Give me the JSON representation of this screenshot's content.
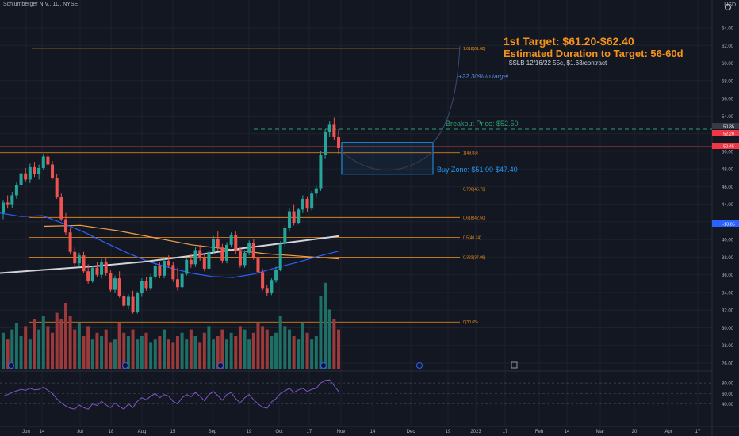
{
  "header": {
    "symbol_info": "Schlumberger N.V., 1D, NYSE",
    "currency": "USD"
  },
  "annotations": {
    "target_title": "1st Target: $61.20-$62.40",
    "duration": "Estimated Duration to Target: 56-60d",
    "option": "$SLB 12/16/22 55c, $1.63/contract",
    "pct_to_target": "+22.30% to target",
    "breakout": "Breakout Price: $52.50",
    "buy_zone": "Buy Zone: $51.00-$47.40"
  },
  "fib_levels": [
    {
      "label": "1.618(61.68)",
      "value": 61.68
    },
    {
      "label": "1(49.83)",
      "value": 49.83
    },
    {
      "label": "0.786(45.73)",
      "value": 45.73
    },
    {
      "label": "0.618(42.50)",
      "value": 42.5
    },
    {
      "label": "0.5(40.24)",
      "value": 40.24
    },
    {
      "label": "0.382(37.98)",
      "value": 37.98
    },
    {
      "label": "0(30.65)",
      "value": 30.65
    }
  ],
  "price_badges": [
    {
      "text": "50.35",
      "color": "#363a45"
    },
    {
      "text": "52.20",
      "color": "#f23645"
    },
    {
      "text": "50.45",
      "color": "#f23645"
    },
    {
      "text": "-13.85",
      "color": "#2962ff"
    }
  ],
  "price_axis": {
    "ticks": [
      "64.00",
      "62.00",
      "60.00",
      "58.00",
      "56.00",
      "54.00",
      "52.00",
      "50.00",
      "48.00",
      "46.00",
      "44.00",
      "42.00",
      "40.00",
      "38.00",
      "36.00",
      "34.00",
      "32.00",
      "30.00",
      "28.00",
      "26.00"
    ]
  },
  "rsi_axis": {
    "ticks": [
      "80.00",
      "60.00",
      "40.00"
    ]
  },
  "time_axis": {
    "labels": [
      "Jun",
      "14",
      "Jul",
      "18",
      "Aug",
      "15",
      "Sep",
      "19",
      "Oct",
      "17",
      "Nov",
      "14",
      "Dec",
      "19",
      "2023",
      "17",
      "Feb",
      "14",
      "Mar",
      "20",
      "Apr",
      "17"
    ]
  },
  "colors": {
    "up": "#26a69a",
    "down": "#ef5350",
    "fib": "#f7931a",
    "bg": "#131722",
    "grid": "#1e222d",
    "ma_white": "#d1d4dc",
    "ma_orange": "#f0a04b",
    "ma_blue": "#2962ff",
    "rsi": "#7e57c2",
    "box": "#2196f3"
  },
  "chart_data": {
    "type": "candlestick",
    "title": "Schlumberger N.V., 1D, NYSE",
    "ylim": [
      25,
      66
    ],
    "candles": [
      [
        43,
        44.5,
        42.3,
        44.2
      ],
      [
        44.2,
        45,
        43.5,
        44
      ],
      [
        44,
        45.4,
        43.6,
        45
      ],
      [
        45,
        46.5,
        44.6,
        46.2
      ],
      [
        46.2,
        47.8,
        45.9,
        47.5
      ],
      [
        47.5,
        48.1,
        46.5,
        46.8
      ],
      [
        46.8,
        48.6,
        46.4,
        48.2
      ],
      [
        48.2,
        48.8,
        47.1,
        47.4
      ],
      [
        47.4,
        48.5,
        46.8,
        48.1
      ],
      [
        48.1,
        49.7,
        47.9,
        49.4
      ],
      [
        49.4,
        49.8,
        48.2,
        48.5
      ],
      [
        48.5,
        48.9,
        46.8,
        47
      ],
      [
        47,
        47.4,
        44.6,
        44.8
      ],
      [
        44.8,
        45.2,
        42.1,
        42.3
      ],
      [
        42.3,
        43,
        40.5,
        40.8
      ],
      [
        40.8,
        41.3,
        38.4,
        38.6
      ],
      [
        38.6,
        39.1,
        37,
        37.3
      ],
      [
        37.3,
        38.5,
        36.9,
        38.2
      ],
      [
        38.2,
        38.6,
        36.2,
        36.4
      ],
      [
        36.4,
        37.2,
        35,
        35.3
      ],
      [
        35.3,
        37,
        35.1,
        36.8
      ],
      [
        36.8,
        37.5,
        35.8,
        36
      ],
      [
        36,
        37.8,
        35.6,
        37.5
      ],
      [
        37.5,
        37.9,
        35.9,
        36.2
      ],
      [
        36.2,
        36.6,
        34.1,
        34.3
      ],
      [
        34.3,
        35.9,
        34,
        35.6
      ],
      [
        35.6,
        36.4,
        33.4,
        33.6
      ],
      [
        33.6,
        34,
        32.3,
        32.5
      ],
      [
        32.5,
        33.8,
        32.1,
        33.5
      ],
      [
        33.5,
        34.2,
        31.6,
        31.8
      ],
      [
        31.8,
        34.1,
        31.6,
        33.9
      ],
      [
        33.9,
        35.6,
        33.5,
        35.3
      ],
      [
        35.3,
        35.7,
        34.2,
        34.5
      ],
      [
        34.5,
        36.1,
        34.2,
        35.8
      ],
      [
        35.8,
        37.3,
        35.5,
        37
      ],
      [
        37,
        37.5,
        35.6,
        35.9
      ],
      [
        35.9,
        37.9,
        35.6,
        37.6
      ],
      [
        37.6,
        38.2,
        36.8,
        37.1
      ],
      [
        37.1,
        37.5,
        35.2,
        35.5
      ],
      [
        35.5,
        36.8,
        34.2,
        34.6
      ],
      [
        34.6,
        36.4,
        34.3,
        36.1
      ],
      [
        36.1,
        38,
        35.9,
        37.7
      ],
      [
        37.7,
        38.4,
        36.8,
        37.2
      ],
      [
        37.2,
        39.1,
        36.9,
        38.8
      ],
      [
        38.8,
        39.4,
        37.6,
        37.9
      ],
      [
        37.9,
        38.3,
        36.4,
        36.7
      ],
      [
        36.7,
        38.9,
        36.5,
        38.6
      ],
      [
        38.6,
        40.4,
        38.3,
        40.1
      ],
      [
        40.1,
        40.9,
        38.7,
        39.1
      ],
      [
        39.1,
        39.5,
        37.3,
        37.6
      ],
      [
        37.6,
        39.7,
        37.3,
        39.4
      ],
      [
        39.4,
        40.8,
        39.1,
        40.5
      ],
      [
        40.5,
        40.9,
        38.4,
        38.7
      ],
      [
        38.7,
        39.1,
        36.8,
        37.1
      ],
      [
        37.1,
        38.8,
        36.8,
        38.5
      ],
      [
        38.5,
        39.9,
        38.2,
        39.6
      ],
      [
        39.6,
        40.1,
        37.7,
        38
      ],
      [
        38,
        38.4,
        36,
        36.3
      ],
      [
        36.3,
        36.7,
        34.2,
        34.5
      ],
      [
        34.5,
        34.9,
        33.6,
        33.9
      ],
      [
        33.9,
        35.6,
        33.7,
        35.4
      ],
      [
        35.4,
        36.9,
        35.1,
        36.6
      ],
      [
        36.6,
        39.8,
        36.4,
        39.5
      ],
      [
        39.5,
        41.6,
        39.2,
        41.3
      ],
      [
        41.3,
        43.5,
        40.9,
        43.2
      ],
      [
        43.2,
        44,
        41.6,
        41.9
      ],
      [
        41.9,
        43.6,
        41.7,
        43.4
      ],
      [
        43.4,
        45,
        43,
        44.6
      ],
      [
        44.6,
        44.9,
        43.1,
        43.5
      ],
      [
        43.5,
        45.5,
        43.3,
        45.2
      ],
      [
        45.2,
        46.1,
        44.7,
        45.8
      ],
      [
        45.8,
        50,
        45.5,
        49.6
      ],
      [
        49.6,
        52.5,
        49.2,
        52.2
      ],
      [
        52.2,
        53.4,
        51.6,
        53
      ],
      [
        53,
        53.8,
        51.3,
        51.6
      ],
      [
        51.6,
        52.5,
        49.7,
        50.35
      ]
    ],
    "volume": [
      11,
      9,
      12,
      14,
      10,
      13,
      9,
      15,
      12,
      16,
      13,
      11,
      17,
      15,
      20,
      16,
      12,
      14,
      10,
      13,
      9,
      11,
      10,
      12,
      8,
      9,
      14,
      11,
      10,
      12,
      9,
      10,
      11,
      8,
      9,
      10,
      12,
      9,
      8,
      10,
      11,
      9,
      12,
      10,
      8,
      11,
      13,
      9,
      10,
      12,
      9,
      11,
      10,
      13,
      12,
      9,
      11,
      14,
      13,
      12,
      10,
      11,
      16,
      13,
      12,
      10,
      9,
      14,
      11,
      9,
      10,
      22,
      26,
      18,
      15,
      12
    ],
    "rsi": [
      55,
      58,
      62,
      65,
      68,
      66,
      70,
      67,
      68,
      72,
      66,
      60,
      50,
      42,
      36,
      32,
      30,
      38,
      33,
      30,
      40,
      37,
      45,
      38,
      33,
      42,
      35,
      30,
      40,
      33,
      45,
      52,
      48,
      55,
      60,
      52,
      58,
      55,
      45,
      40,
      52,
      58,
      54,
      62,
      55,
      46,
      58,
      64,
      56,
      47,
      58,
      62,
      50,
      42,
      52,
      58,
      48,
      40,
      34,
      32,
      44,
      50,
      60,
      65,
      70,
      62,
      67,
      70,
      64,
      68,
      70,
      80,
      85,
      86,
      75,
      64
    ],
    "ma_white": [
      36.2,
      36.6,
      37,
      37.5,
      38.2,
      39,
      39.7,
      40.4
    ],
    "ma_orange": [
      41.5,
      41.6,
      41,
      40.2,
      39.4,
      38.9,
      38.4,
      38.1,
      37.8
    ],
    "ma_blue": [
      43,
      42.6,
      42.7,
      41.8,
      40.8,
      39.6,
      38.5,
      37.5,
      36.8,
      36.2,
      35.8,
      35.7,
      36.1,
      36.8,
      37.4,
      38.1,
      38.7
    ]
  }
}
